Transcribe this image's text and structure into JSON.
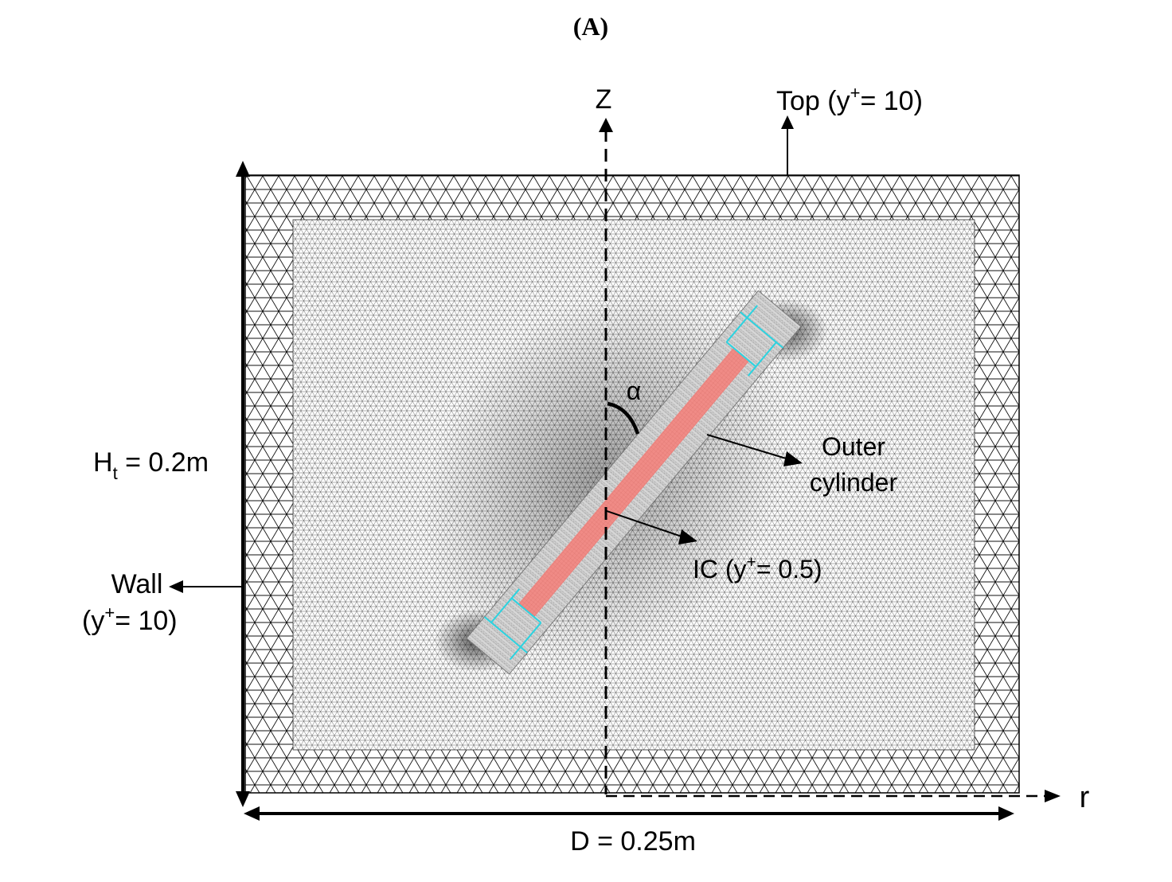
{
  "panel_label": "(A)",
  "axes": {
    "vertical": "Z",
    "horizontal": "r",
    "angle": "α"
  },
  "labels": {
    "top": {
      "main": "Top (y",
      "sup": "+",
      "tail": "= 10)"
    },
    "height": {
      "main": "H",
      "sub": "t",
      "tail": " = 0.2m"
    },
    "wall_line1": "Wall",
    "wall_line2": {
      "main": "(y",
      "sup": "+",
      "tail": "= 10)"
    },
    "outer_line1": "Outer",
    "outer_line2": "cylinder",
    "ic": {
      "main": "IC (y",
      "sup": "+",
      "tail": "= 0.5)"
    },
    "diameter": "D = 0.25m"
  },
  "colors": {
    "mesh": "#111111",
    "ic_fill": "#f08b86",
    "outer_fill": "#d6d6d6",
    "markers": "#2bd3e0"
  }
}
